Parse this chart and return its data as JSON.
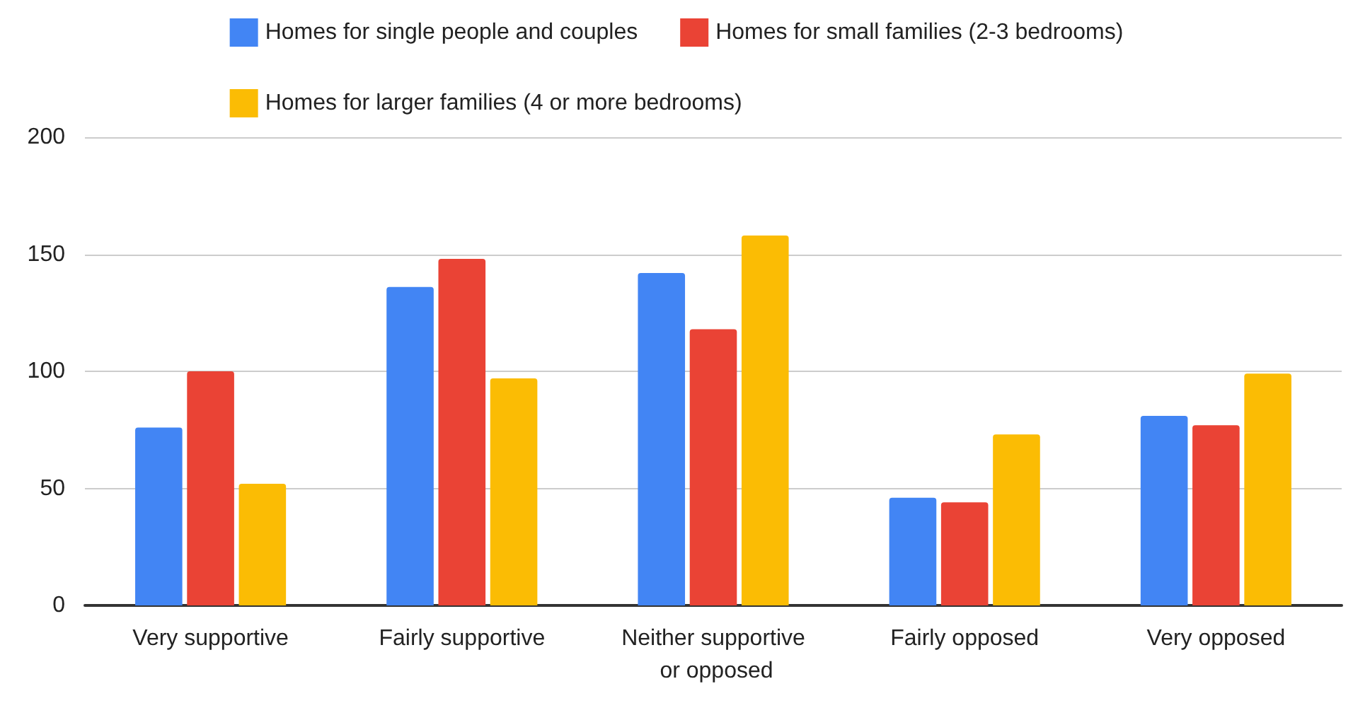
{
  "chart_data": {
    "type": "bar",
    "categories": [
      "Very supportive",
      "Fairly supportive",
      "Neither supportive or opposed",
      "Fairly opposed",
      "Very opposed"
    ],
    "series": [
      {
        "name": "Homes for single people and couples",
        "color": "#4285f4",
        "values": [
          76,
          136,
          142,
          46,
          81
        ]
      },
      {
        "name": "Homes for small families (2-3 bedrooms)",
        "color": "#ea4335",
        "values": [
          100,
          148,
          118,
          44,
          77
        ]
      },
      {
        "name": "Homes for larger families (4 or more bedrooms)",
        "color": "#fbbc04",
        "values": [
          52,
          97,
          158,
          73,
          99
        ]
      }
    ],
    "ylim": [
      0,
      200
    ],
    "yticks": [
      0,
      50,
      100,
      150,
      200
    ],
    "grid": "y",
    "legend": "top"
  }
}
